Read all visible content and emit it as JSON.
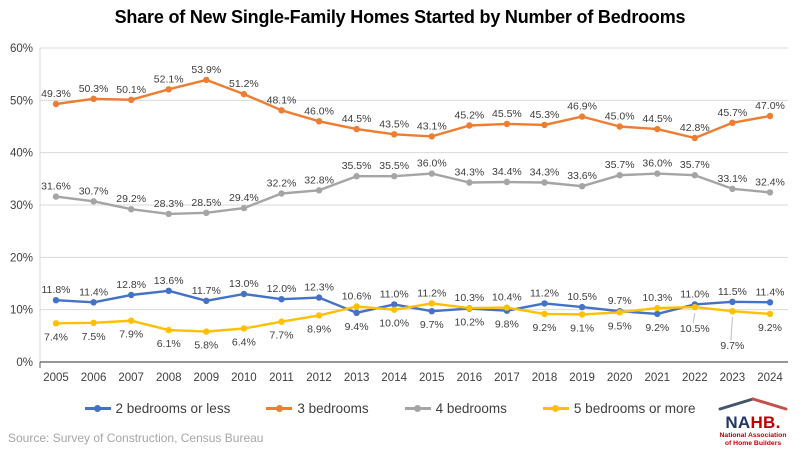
{
  "chart_data": {
    "type": "line",
    "title": "Share of New Single-Family Homes Started by Number of Bedrooms",
    "x": [
      2005,
      2006,
      2007,
      2008,
      2009,
      2010,
      2011,
      2012,
      2013,
      2014,
      2015,
      2016,
      2017,
      2018,
      2019,
      2020,
      2021,
      2022,
      2023,
      2024
    ],
    "ylim": [
      0,
      60
    ],
    "y_ticks": [
      0,
      10,
      20,
      30,
      40,
      50,
      60
    ],
    "y_tick_suffix": "%",
    "grid": true,
    "legend_position": "bottom",
    "series": [
      {
        "name": "2 bedrooms or less",
        "color": "#4472C4",
        "pair": 3,
        "values": [
          11.8,
          11.4,
          12.8,
          13.6,
          11.7,
          13.0,
          12.0,
          12.3,
          9.4,
          11.0,
          9.7,
          10.2,
          9.8,
          11.2,
          10.5,
          9.7,
          9.2,
          11.0,
          11.5,
          11.4
        ]
      },
      {
        "name": "3 bedrooms",
        "color": "#ED7D31",
        "values": [
          49.3,
          50.3,
          50.1,
          52.1,
          53.9,
          51.2,
          48.1,
          46.0,
          44.5,
          43.5,
          43.1,
          45.2,
          45.5,
          45.3,
          46.9,
          45.0,
          44.5,
          42.8,
          45.7,
          47.0
        ]
      },
      {
        "name": "4 bedrooms",
        "color": "#A5A5A5",
        "values": [
          31.6,
          30.7,
          29.2,
          28.3,
          28.5,
          29.4,
          32.2,
          32.8,
          35.5,
          35.5,
          36.0,
          34.3,
          34.4,
          34.3,
          33.6,
          35.7,
          36.0,
          35.7,
          33.1,
          32.4
        ]
      },
      {
        "name": "5 bedrooms or more",
        "color": "#FFC000",
        "pair": 0,
        "values": [
          7.4,
          7.5,
          7.9,
          6.1,
          5.8,
          6.4,
          7.7,
          8.9,
          10.6,
          10.0,
          11.2,
          10.3,
          10.4,
          9.2,
          9.1,
          9.5,
          10.3,
          10.5,
          9.7,
          9.2
        ]
      }
    ],
    "label_overrides": [
      {
        "series": 3,
        "index": 17,
        "dy": 25,
        "leader": true
      },
      {
        "series": 3,
        "index": 18,
        "dy": 38,
        "leader": true
      }
    ]
  },
  "source_note": "Source: Survey of Construction, Census Bureau",
  "logo": {
    "na": "NA",
    "hb": "HB.",
    "line1": "National Association",
    "line2": "of Home Builders"
  }
}
